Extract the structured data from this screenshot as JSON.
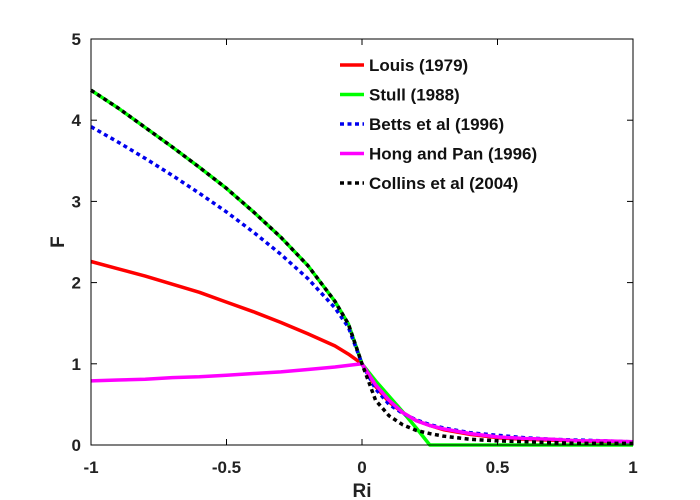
{
  "chart_data": {
    "type": "line",
    "xlabel": "Ri",
    "ylabel": "F",
    "xlim": [
      -1,
      1
    ],
    "ylim": [
      0,
      5
    ],
    "xticks": [
      -1,
      -0.5,
      0,
      0.5,
      1
    ],
    "xtick_labels": [
      "-1",
      "-0.5",
      "0",
      "0.5",
      "1"
    ],
    "yticks": [
      0,
      1,
      2,
      3,
      4,
      5
    ],
    "ytick_labels": [
      "0",
      "1",
      "2",
      "3",
      "4",
      "5"
    ],
    "grid": false,
    "legend_position": "top-right",
    "series": [
      {
        "name": "Louis (1979)",
        "color": "#ff0000",
        "dash": "solid",
        "x": [
          -1,
          -0.9,
          -0.8,
          -0.7,
          -0.6,
          -0.5,
          -0.4,
          -0.3,
          -0.2,
          -0.1,
          -0.05,
          0,
          0.05,
          0.1,
          0.15,
          0.2,
          0.25,
          0.3,
          0.4,
          0.5,
          0.6,
          0.7,
          0.8,
          0.9,
          1
        ],
        "y": [
          2.26,
          2.17,
          2.08,
          1.98,
          1.88,
          1.76,
          1.64,
          1.51,
          1.37,
          1.22,
          1.12,
          1.0,
          0.72,
          0.53,
          0.4,
          0.3,
          0.24,
          0.19,
          0.13,
          0.09,
          0.07,
          0.06,
          0.05,
          0.04,
          0.03
        ]
      },
      {
        "name": "Stull (1988)",
        "color": "#00ff00",
        "dash": "solid",
        "x": [
          -1,
          -0.9,
          -0.8,
          -0.7,
          -0.6,
          -0.5,
          -0.4,
          -0.3,
          -0.2,
          -0.1,
          -0.05,
          0,
          0.05,
          0.1,
          0.15,
          0.2,
          0.25,
          0.3,
          0.5,
          0.7,
          1
        ],
        "y": [
          4.37,
          4.15,
          3.91,
          3.67,
          3.42,
          3.16,
          2.87,
          2.56,
          2.21,
          1.77,
          1.49,
          1.0,
          0.79,
          0.6,
          0.41,
          0.21,
          0.0,
          0.0,
          0.0,
          0.0,
          0.0
        ]
      },
      {
        "name": "Betts et al (1996)",
        "color": "#0000ee",
        "dash": "dotted",
        "x": [
          -1,
          -0.9,
          -0.8,
          -0.7,
          -0.6,
          -0.5,
          -0.4,
          -0.3,
          -0.2,
          -0.1,
          -0.05,
          0,
          0.05,
          0.1,
          0.15,
          0.2,
          0.25,
          0.3,
          0.4,
          0.5,
          0.6,
          0.7,
          0.8,
          0.9,
          1
        ],
        "y": [
          3.92,
          3.73,
          3.53,
          3.32,
          3.1,
          2.87,
          2.62,
          2.35,
          2.05,
          1.69,
          1.45,
          1.0,
          0.69,
          0.5,
          0.39,
          0.31,
          0.25,
          0.21,
          0.15,
          0.12,
          0.09,
          0.07,
          0.06,
          0.05,
          0.04
        ]
      },
      {
        "name": "Hong and Pan (1996)",
        "color": "#ff00ff",
        "dash": "solid",
        "x": [
          -1,
          -0.9,
          -0.8,
          -0.7,
          -0.6,
          -0.5,
          -0.4,
          -0.3,
          -0.2,
          -0.1,
          -0.05,
          0,
          0.05,
          0.1,
          0.15,
          0.2,
          0.25,
          0.3,
          0.4,
          0.5,
          0.6,
          0.7,
          0.8,
          0.9,
          1
        ],
        "y": [
          0.79,
          0.8,
          0.81,
          0.83,
          0.84,
          0.86,
          0.88,
          0.9,
          0.93,
          0.96,
          0.98,
          1.0,
          0.74,
          0.55,
          0.4,
          0.3,
          0.24,
          0.2,
          0.14,
          0.1,
          0.08,
          0.07,
          0.05,
          0.05,
          0.04
        ]
      },
      {
        "name": "Collins et al (2004)",
        "color": "#000000",
        "dash": "dotted",
        "x": [
          -1,
          -0.9,
          -0.8,
          -0.7,
          -0.6,
          -0.5,
          -0.4,
          -0.3,
          -0.2,
          -0.1,
          -0.05,
          0,
          0.05,
          0.1,
          0.15,
          0.2,
          0.25,
          0.3,
          0.4,
          0.5,
          0.6,
          0.7,
          0.8,
          0.9,
          1
        ],
        "y": [
          4.37,
          4.15,
          3.91,
          3.67,
          3.42,
          3.16,
          2.87,
          2.56,
          2.21,
          1.77,
          1.49,
          1.0,
          0.55,
          0.36,
          0.25,
          0.18,
          0.14,
          0.11,
          0.07,
          0.05,
          0.04,
          0.03,
          0.02,
          0.02,
          0.02
        ]
      }
    ]
  }
}
